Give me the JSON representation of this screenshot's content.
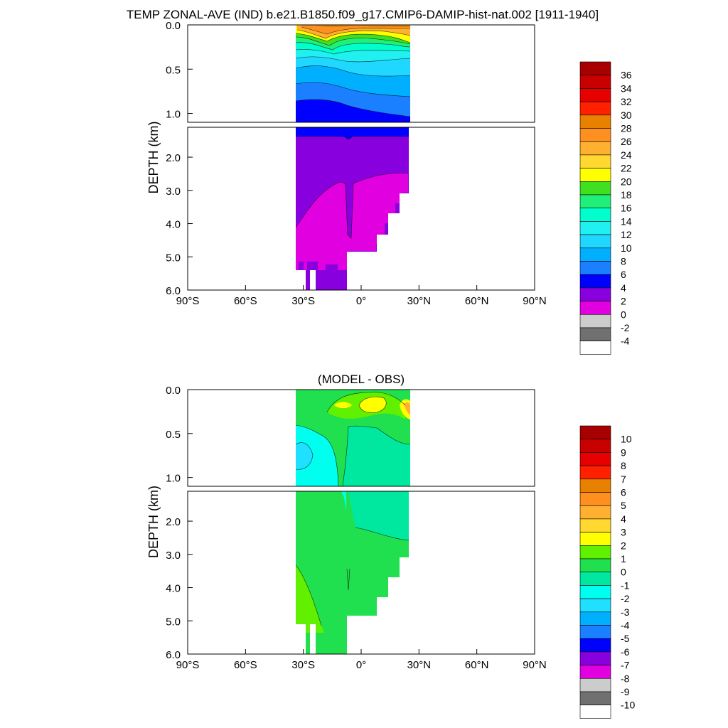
{
  "figure": {
    "title": "TEMP ZONAL-AVE (IND) b.e21.B1850.f09_g17.CMIP6-DAMIP-hist-nat.002 [1911-1940]"
  },
  "chart_data": [
    {
      "type": "heatmap",
      "title": "",
      "variable": "Temperature zonal average",
      "ylabel": "DEPTH (km)",
      "xlabel": "",
      "x_ticks": [
        "90°S",
        "60°S",
        "30°S",
        "0°",
        "30°N",
        "60°N",
        "90°N"
      ],
      "x_tick_values": [
        -90,
        -60,
        -30,
        0,
        30,
        60,
        90
      ],
      "y_ticks_upper": [
        "0.0",
        "0.5",
        "1.0"
      ],
      "y_ticks_lower": [
        "2.0",
        "3.0",
        "4.0",
        "5.0",
        "6.0"
      ],
      "y_tick_values_upper": [
        0.0,
        0.5,
        1.0
      ],
      "y_tick_values_lower": [
        2.0,
        3.0,
        4.0,
        5.0,
        6.0
      ],
      "xlim": [
        -90,
        90
      ],
      "ylim_upper": [
        0,
        1.1
      ],
      "ylim_lower": [
        1.1,
        6.0
      ],
      "data_lat_range": [
        -34,
        26
      ],
      "upper_profile": [
        {
          "depth": 0.0,
          "value": 27
        },
        {
          "depth": 0.05,
          "value": 26
        },
        {
          "depth": 0.1,
          "value": 24
        },
        {
          "depth": 0.2,
          "value": 20
        },
        {
          "depth": 0.3,
          "value": 16
        },
        {
          "depth": 0.4,
          "value": 13
        },
        {
          "depth": 0.5,
          "value": 12
        },
        {
          "depth": 0.6,
          "value": 11
        },
        {
          "depth": 0.8,
          "value": 9
        },
        {
          "depth": 1.0,
          "value": 6
        },
        {
          "depth": 1.1,
          "value": 5
        }
      ],
      "deep_values": {
        "intermediate": 3,
        "bottom": 1
      },
      "colorbar": {
        "labels": [
          "36",
          "34",
          "32",
          "30",
          "28",
          "26",
          "24",
          "22",
          "20",
          "18",
          "16",
          "14",
          "12",
          "10",
          "8",
          "6",
          "4",
          "2",
          "0",
          "-2",
          "-4"
        ],
        "colors": [
          "#a80000",
          "#c80000",
          "#e60000",
          "#ff2000",
          "#e88000",
          "#ff9020",
          "#ffb030",
          "#ffd830",
          "#ffff00",
          "#40e020",
          "#20f07a",
          "#00ffcc",
          "#20f0f0",
          "#20d8ff",
          "#00b0ff",
          "#1a80ff",
          "#0000ff",
          "#8800dd",
          "#e000e0",
          "#cccccc",
          "#707070",
          "#ffffff"
        ]
      }
    },
    {
      "type": "heatmap",
      "title": "(MODEL - OBS)",
      "variable": "Temperature difference",
      "ylabel": "DEPTH (km)",
      "xlabel": "",
      "x_ticks": [
        "90°S",
        "60°S",
        "30°S",
        "0°",
        "30°N",
        "60°N",
        "90°N"
      ],
      "x_tick_values": [
        -90,
        -60,
        -30,
        0,
        30,
        60,
        90
      ],
      "y_ticks_upper": [
        "0.0",
        "0.5",
        "1.0"
      ],
      "y_ticks_lower": [
        "2.0",
        "3.0",
        "4.0",
        "5.0",
        "6.0"
      ],
      "y_tick_values_upper": [
        0.0,
        0.5,
        1.0
      ],
      "y_tick_values_lower": [
        2.0,
        3.0,
        4.0,
        5.0,
        6.0
      ],
      "xlim": [
        -90,
        90
      ],
      "ylim_upper": [
        0,
        1.1
      ],
      "ylim_lower": [
        1.1,
        6.0
      ],
      "data_lat_range": [
        -34,
        26
      ],
      "colorbar": {
        "labels": [
          "10",
          "9",
          "8",
          "7",
          "6",
          "5",
          "4",
          "3",
          "2",
          "1",
          "0",
          "-1",
          "-2",
          "-3",
          "-4",
          "-5",
          "-6",
          "-7",
          "-8",
          "-9",
          "-10"
        ],
        "colors": [
          "#a80000",
          "#c80000",
          "#e60000",
          "#ff2000",
          "#e88000",
          "#ff9020",
          "#ffb030",
          "#ffd830",
          "#ffff00",
          "#60f000",
          "#20e050",
          "#00e8a0",
          "#00ffee",
          "#20e0ff",
          "#00b0ff",
          "#1a80ff",
          "#0000ff",
          "#8800dd",
          "#e000e0",
          "#cccccc",
          "#707070",
          "#ffffff"
        ]
      }
    }
  ]
}
